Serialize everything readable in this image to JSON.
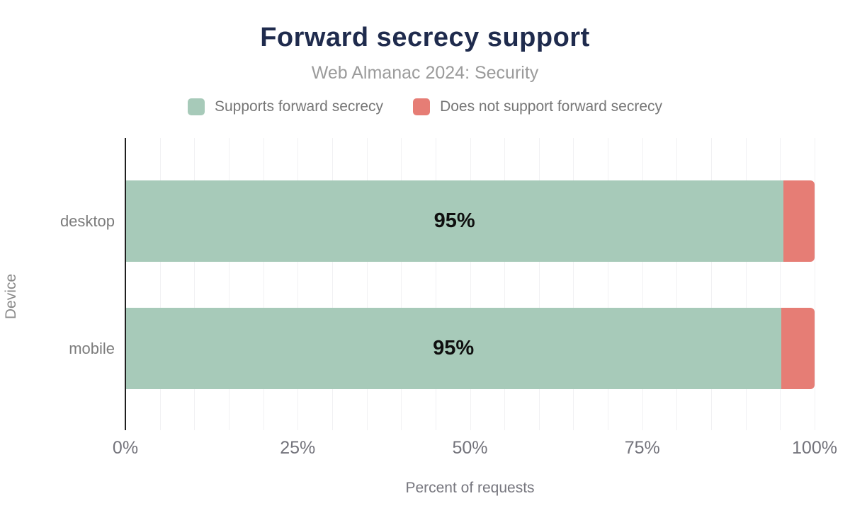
{
  "chart_data": {
    "type": "bar",
    "orientation": "horizontal",
    "stacked": true,
    "title": "Forward secrecy support",
    "subtitle": "Web Almanac 2024: Security",
    "categories": [
      "desktop",
      "mobile"
    ],
    "series": [
      {
        "name": "Supports forward secrecy",
        "color": "#a7cab9",
        "values": [
          95.5,
          95.2
        ]
      },
      {
        "name": "Does not support forward secrecy",
        "color": "#e67d75",
        "values": [
          4.5,
          4.8
        ]
      }
    ],
    "bar_labels": [
      "95%",
      "95%"
    ],
    "xlabel": "Percent of requests",
    "ylabel": "Device",
    "xlim": [
      0,
      100
    ],
    "x_ticks": [
      {
        "label": "0%",
        "value": 0
      },
      {
        "label": "25%",
        "value": 25
      },
      {
        "label": "50%",
        "value": 50
      },
      {
        "label": "75%",
        "value": 75
      },
      {
        "label": "100%",
        "value": 100
      }
    ],
    "grid": {
      "minor_step": 5,
      "on": true,
      "color": "#f1f1f3"
    },
    "legend_position": "top"
  },
  "colors": {
    "background": "#ffffff",
    "title": "#1f2b4d",
    "subtitle": "#9b9b9b",
    "legend_text": "#767676",
    "axis_line": "#1f1f1f",
    "tick_text": "#73737b",
    "bar_label_text": "#0f0f0f"
  }
}
